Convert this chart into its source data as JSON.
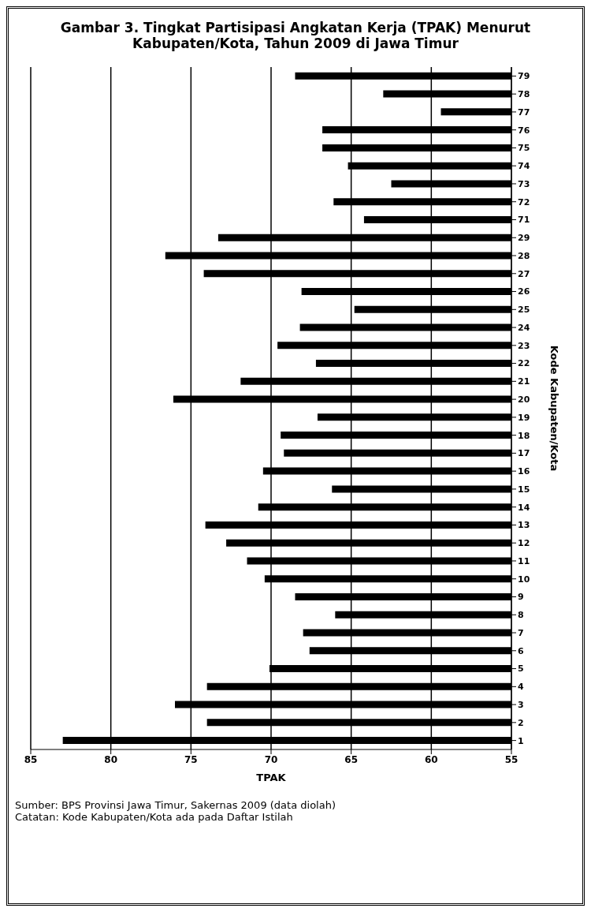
{
  "chart_data": {
    "type": "bar",
    "orientation": "horizontal",
    "title": "Gambar 3. Tingkat Partisipasi Angkatan Kerja (TPAK) Menurut Kabupaten/Kota, Tahun 2009 di Jawa Timur",
    "xlabel": "TPAK",
    "ylabel": "Kode Kabupaten/Kota",
    "categories": [
      "79",
      "78",
      "77",
      "76",
      "75",
      "74",
      "73",
      "72",
      "71",
      "29",
      "28",
      "27",
      "26",
      "25",
      "24",
      "23",
      "22",
      "21",
      "20",
      "19",
      "18",
      "17",
      "16",
      "15",
      "14",
      "13",
      "12",
      "11",
      "10",
      "9",
      "8",
      "7",
      "6",
      "5",
      "4",
      "3",
      "2",
      "1"
    ],
    "values": [
      68.5,
      63.0,
      59.4,
      66.8,
      66.8,
      65.2,
      62.5,
      66.1,
      64.2,
      73.3,
      76.6,
      74.2,
      68.1,
      64.8,
      68.2,
      69.6,
      67.2,
      71.9,
      76.1,
      67.1,
      69.4,
      69.2,
      70.5,
      66.2,
      70.8,
      74.1,
      72.8,
      71.5,
      70.4,
      68.5,
      66.0,
      68.0,
      67.6,
      70.1,
      74.0,
      76.0,
      74.0,
      83.0
    ],
    "color": "#000000",
    "xlim": [
      85,
      55
    ],
    "xticks": [
      85,
      80,
      75,
      70,
      65,
      60,
      55
    ],
    "grid": "x",
    "annotations": [
      "Sumber: BPS Provinsi Jawa Timur, Sakernas 2009 (data diolah)",
      "Catatan: Kode Kabupaten/Kota ada pada Daftar Istilah"
    ]
  }
}
